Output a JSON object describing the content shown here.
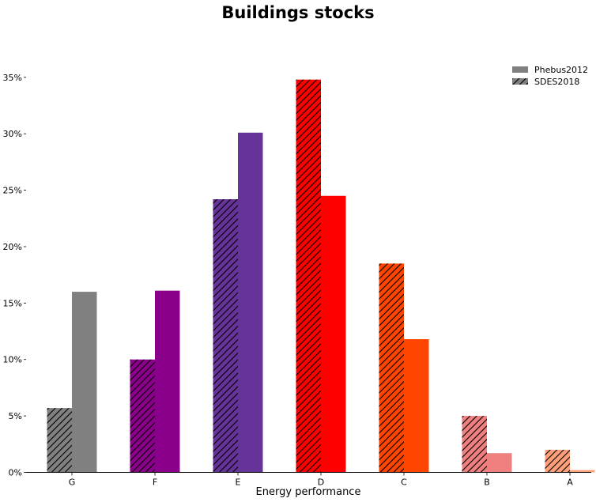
{
  "chart_data": {
    "type": "bar",
    "title": "Buildings stocks",
    "xlabel": "Energy performance",
    "ylabel": "",
    "categories": [
      "G",
      "F",
      "E",
      "D",
      "C",
      "B",
      "A"
    ],
    "ylim": [
      0,
      0.375
    ],
    "yticks": [
      0,
      0.05,
      0.1,
      0.15,
      0.2,
      0.25,
      0.3,
      0.35
    ],
    "ytick_labels": [
      "0%",
      "5%",
      "10%",
      "15%",
      "20%",
      "25%",
      "30%",
      "35%"
    ],
    "series": [
      {
        "name": "SDES2018",
        "hatched": true,
        "values": [
          0.057,
          0.1,
          0.242,
          0.348,
          0.185,
          0.05,
          0.02
        ]
      },
      {
        "name": "Phebus2012",
        "hatched": false,
        "values": [
          0.16,
          0.161,
          0.301,
          0.245,
          0.118,
          0.017,
          0.002
        ]
      }
    ],
    "category_colors": [
      "#808080",
      "#8b008b",
      "#663399",
      "#ff0000",
      "#ff4500",
      "#f08080",
      "#ffa07a"
    ],
    "legend": {
      "placement": "top-right",
      "entries": [
        {
          "label": "Phebus2012",
          "swatch_color": "#808080",
          "hatched": false
        },
        {
          "label": "SDES2018",
          "swatch_color": "#808080",
          "hatched": true
        }
      ]
    },
    "grid": false
  }
}
